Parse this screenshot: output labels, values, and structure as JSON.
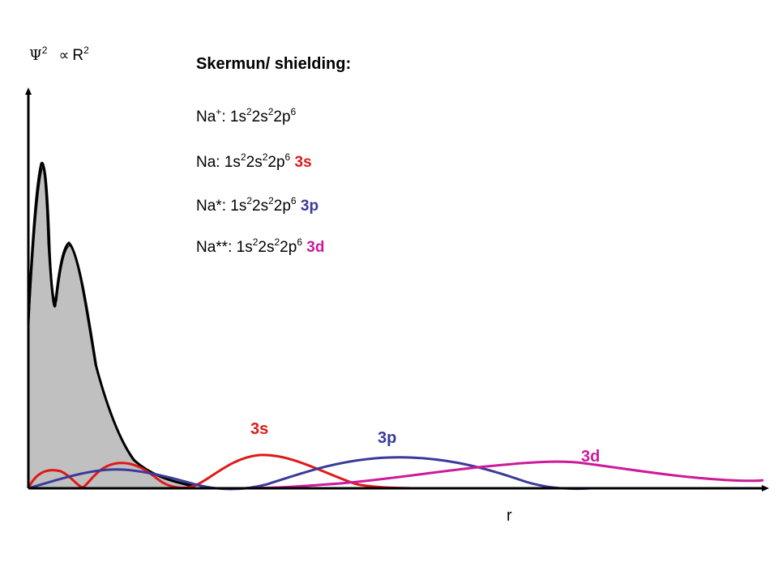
{
  "title": "Skermun/ shielding:",
  "y_axis": {
    "psi": "Ψ",
    "psi_exp": "2",
    "prop": "∝",
    "r": "R",
    "r_exp": "2"
  },
  "x_axis": {
    "label": "r"
  },
  "configs": [
    {
      "prefix": "Na",
      "charge": "+",
      "colon": ":",
      "core": [
        "1s",
        "2",
        "2s",
        "2",
        "2p",
        "6"
      ],
      "orbital": "",
      "orbital_color": ""
    },
    {
      "prefix": "Na",
      "charge": "",
      "colon": ":",
      "core": [
        "1s",
        "2",
        "2s",
        "2",
        "2p",
        "6"
      ],
      "orbital": "3s",
      "orbital_color": "#e01818"
    },
    {
      "prefix": "Na*",
      "charge": "",
      "colon": ":",
      "core": [
        "1s",
        "2",
        "2s",
        "2",
        "2p",
        "6"
      ],
      "orbital": "3p",
      "orbital_color": "#3a3a9a"
    },
    {
      "prefix": "Na**",
      "charge": "",
      "colon": ":",
      "core": [
        "1s",
        "2",
        "2s",
        "2",
        "2p",
        "6"
      ],
      "orbital": "3d",
      "orbital_color": "#cc1a9a"
    }
  ],
  "curves": {
    "s3": {
      "label": "3s",
      "color": "#e01818"
    },
    "p3": {
      "label": "3p",
      "color": "#3a3a9a"
    },
    "d3": {
      "label": "3d",
      "color": "#cc1a9a"
    },
    "core": {
      "fill": "#c0c0c0",
      "stroke": "#000000"
    }
  }
}
